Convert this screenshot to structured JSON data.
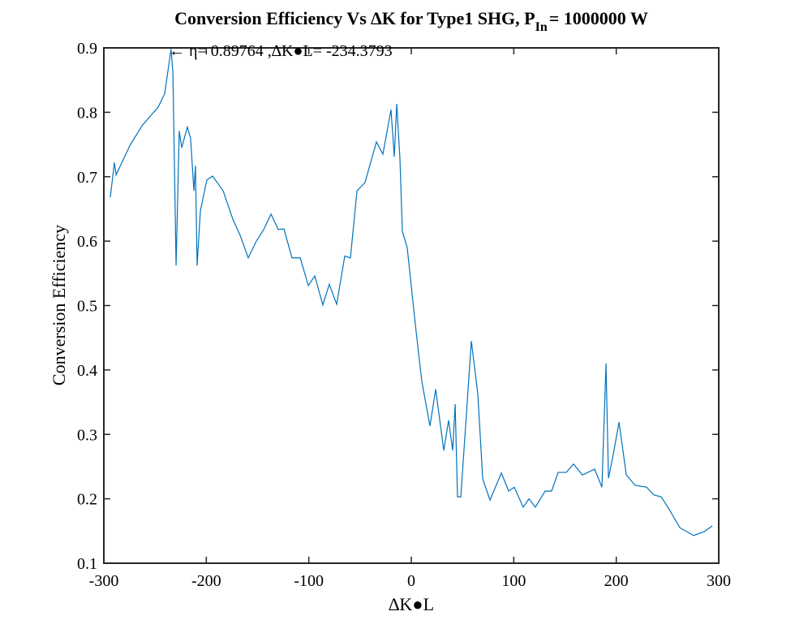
{
  "chart_data": {
    "type": "line",
    "title": "Conversion Efficiency Vs ∆K for Type1 SHG, P",
    "title_subscript": "In",
    "title_suffix": "= 1000000 W",
    "xlabel": "∆K●L",
    "ylabel": "Conversion Efficiency",
    "annotation": "← η= 0.89764 ,∆K●L= -234.3793",
    "color": "#0072bd",
    "xlim": [
      -300,
      300
    ],
    "ylim": [
      0.1,
      0.9
    ],
    "xticks": [
      -300,
      -200,
      -100,
      0,
      100,
      200,
      300
    ],
    "yticks": [
      0.1,
      0.2,
      0.3,
      0.4,
      0.5,
      0.6,
      0.7,
      0.8,
      0.9
    ],
    "grid": false,
    "x": [
      -293.7,
      -289.7,
      -288,
      -274.7,
      -262.8,
      -247,
      -240.6,
      -234.4,
      -232.6,
      -229.5,
      -226.4,
      -224,
      -218.5,
      -215.4,
      -212.1,
      -210.6,
      -209,
      -205.8,
      -199.5,
      -193.9,
      -183.6,
      -174.1,
      -167,
      -159.1,
      -151.2,
      -144,
      -136.9,
      -129.8,
      -124.3,
      -116.4,
      -108.4,
      -100.5,
      -94.2,
      -86.3,
      -80,
      -72.8,
      -64.9,
      -59.4,
      -53,
      -45.2,
      -34,
      -27.7,
      -19.8,
      -16.6,
      -14.2,
      -11.1,
      -8.7,
      -4,
      4,
      10.3,
      18.2,
      23.8,
      31.7,
      36.4,
      40.4,
      42.8,
      45.1,
      48.3,
      52.2,
      58.6,
      64.9,
      69.7,
      76.8,
      87.9,
      95,
      100.5,
      109.2,
      114.8,
      121.1,
      130.6,
      136.9,
      143.3,
      151.2,
      158.3,
      167,
      178.9,
      186,
      190,
      192.4,
      197.1,
      202.7,
      209.8,
      218.5,
      229.6,
      236.7,
      243.9,
      252.6,
      262.1,
      275.5,
      285.8,
      293.7
    ],
    "values": [
      0.668,
      0.722,
      0.703,
      0.748,
      0.779,
      0.808,
      0.829,
      0.898,
      0.861,
      0.562,
      0.771,
      0.745,
      0.777,
      0.76,
      0.678,
      0.717,
      0.562,
      0.647,
      0.695,
      0.701,
      0.678,
      0.634,
      0.609,
      0.574,
      0.6,
      0.618,
      0.642,
      0.618,
      0.619,
      0.574,
      0.574,
      0.531,
      0.546,
      0.501,
      0.533,
      0.502,
      0.577,
      0.574,
      0.678,
      0.691,
      0.754,
      0.735,
      0.804,
      0.731,
      0.813,
      0.729,
      0.615,
      0.59,
      0.47,
      0.382,
      0.313,
      0.37,
      0.275,
      0.322,
      0.275,
      0.347,
      0.203,
      0.203,
      0.294,
      0.445,
      0.363,
      0.231,
      0.198,
      0.24,
      0.212,
      0.218,
      0.187,
      0.2,
      0.187,
      0.212,
      0.212,
      0.241,
      0.241,
      0.254,
      0.237,
      0.246,
      0.218,
      0.41,
      0.232,
      0.269,
      0.319,
      0.237,
      0.221,
      0.218,
      0.206,
      0.203,
      0.181,
      0.155,
      0.143,
      0.149,
      0.158
    ]
  }
}
